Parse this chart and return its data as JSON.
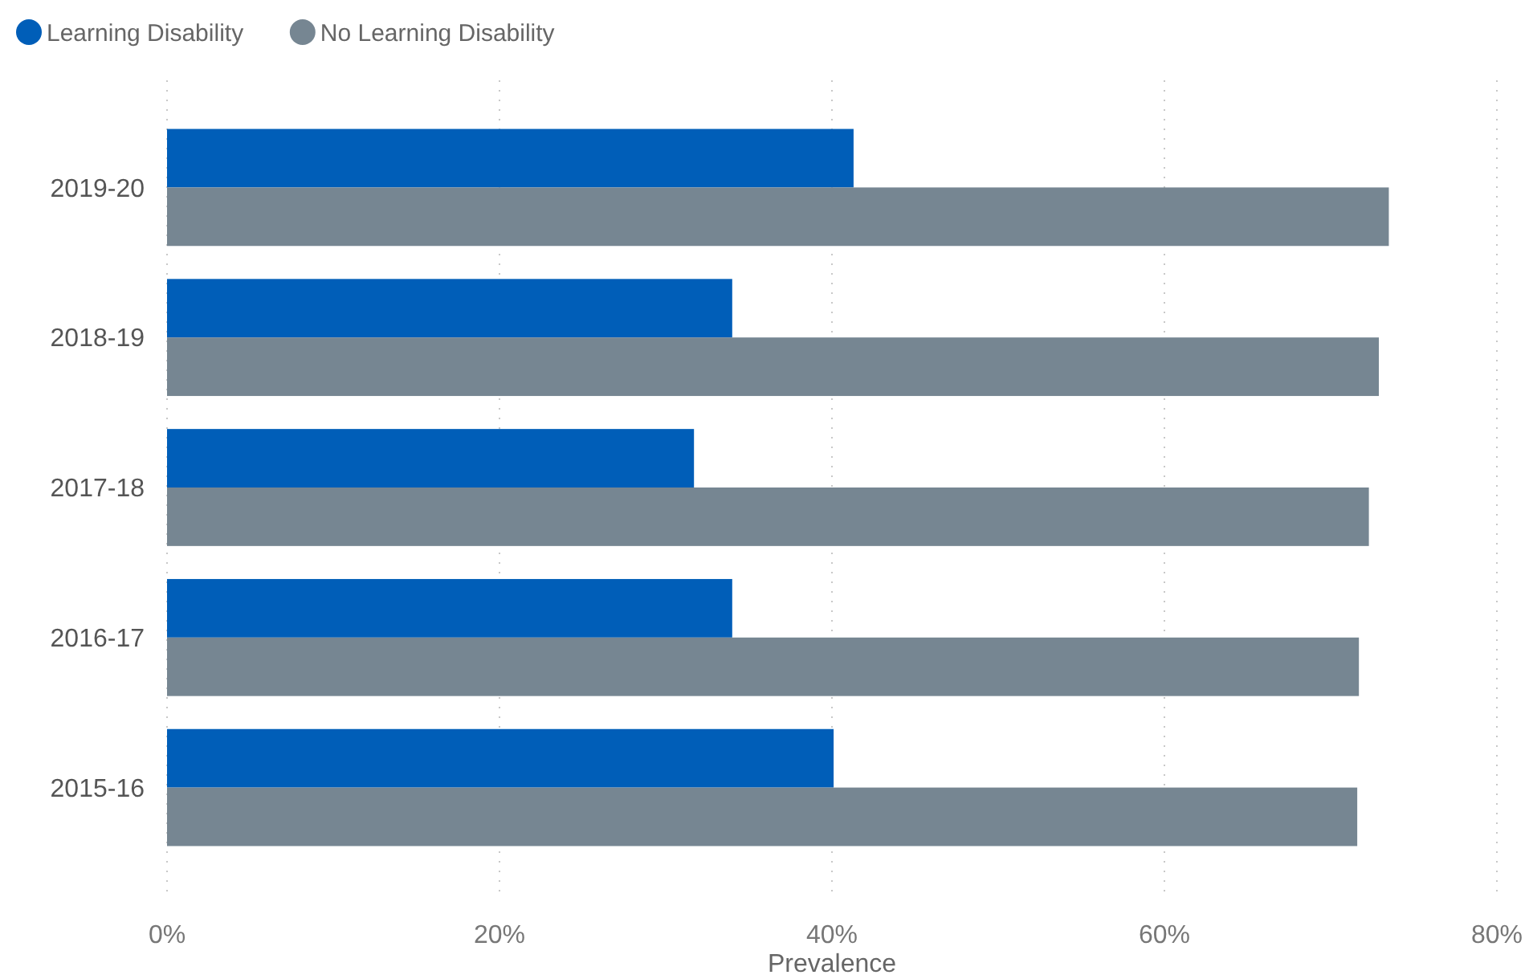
{
  "chart_data": {
    "type": "bar",
    "orientation": "horizontal",
    "xlabel": "Prevalence",
    "categories": [
      "2019-20",
      "2018-19",
      "2017-18",
      "2016-17",
      "2015-16"
    ],
    "series": [
      {
        "name": "Learning Disability",
        "color": "#005eb8",
        "values": [
          41.3,
          34.0,
          31.7,
          34.0,
          40.1
        ]
      },
      {
        "name": "No Learning Disability",
        "color": "#768692",
        "values": [
          73.5,
          72.9,
          72.3,
          71.7,
          71.6
        ]
      }
    ],
    "xlim": [
      0,
      80
    ],
    "xticks": [
      {
        "value": 0,
        "label": "0%"
      },
      {
        "value": 20,
        "label": "20%"
      },
      {
        "value": 40,
        "label": "40%"
      },
      {
        "value": 60,
        "label": "60%"
      },
      {
        "value": 80,
        "label": "80%"
      }
    ],
    "grid": "x",
    "legend": "top left"
  }
}
